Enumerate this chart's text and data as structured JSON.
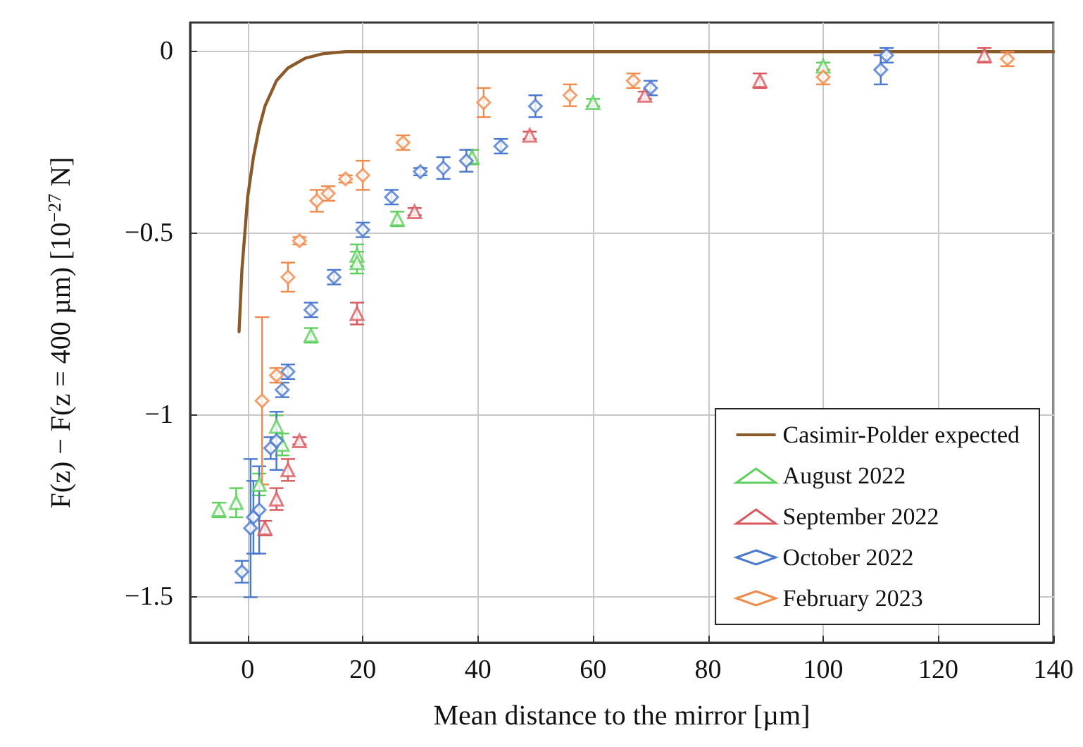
{
  "chart_data": {
    "type": "scatter",
    "xlabel": "Mean distance to the mirror [µm]",
    "ylabel": "F(z) − F(z = 400 µm) [10$^{−27}$ N]",
    "xlim": [
      -10,
      140
    ],
    "ylim": [
      -1.625,
      0.08
    ],
    "xticks": [
      0,
      20,
      40,
      60,
      80,
      100,
      120,
      140
    ],
    "yticks": [
      {
        "value": 0,
        "label": "0"
      },
      {
        "value": -0.5,
        "label": "−0.5"
      },
      {
        "value": -1,
        "label": "−1"
      },
      {
        "value": -1.5,
        "label": "−1.5"
      }
    ],
    "grid": true,
    "legend": "bottom right",
    "series": [
      {
        "name": "Casimir-Polder expected",
        "type": "line",
        "color": "#8b5a2b",
        "marker": "none",
        "line_style": "solid",
        "x": [
          -1.5,
          -1,
          -0.5,
          0,
          1,
          2,
          3,
          5,
          7,
          10,
          13,
          17,
          140
        ],
        "values": [
          -0.77,
          -0.6,
          -0.5,
          -0.4,
          -0.29,
          -0.21,
          -0.15,
          -0.08,
          -0.045,
          -0.018,
          -0.006,
          0,
          0
        ]
      },
      {
        "name": "August 2022",
        "color": "#5ccf5c",
        "marker": "triangle",
        "x": [
          -5,
          -2,
          0,
          2,
          5,
          5.5,
          6,
          11,
          19,
          19,
          26,
          39,
          60,
          100
        ],
        "values": [
          -1.26,
          -1.24,
          null,
          -1.19,
          -1.03,
          null,
          -1.08,
          -0.78,
          -0.56,
          -0.58,
          -0.46,
          -0.29,
          -0.14,
          -0.04
        ],
        "errors": [
          0.02,
          0.04,
          null,
          0.03,
          0.03,
          null,
          0.03,
          0.02,
          0.03,
          0.03,
          0.02,
          0.02,
          0.01,
          0.01
        ]
      },
      {
        "name": "September 2022",
        "color": "#d9585d",
        "marker": "triangle",
        "x": [
          3,
          5,
          7,
          9,
          19,
          29,
          49,
          69,
          89,
          128
        ],
        "values": [
          -1.31,
          -1.23,
          -1.15,
          -1.07,
          -0.72,
          -0.44,
          -0.23,
          -0.12,
          -0.08,
          -0.01
        ],
        "errors": [
          0.02,
          0.03,
          0.03,
          0.01,
          0.03,
          0.01,
          0.01,
          0.01,
          0.02,
          0.02
        ]
      },
      {
        "name": "October 2022",
        "color": "#4a78d0",
        "marker": "diamond",
        "x": [
          -1,
          0.5,
          1,
          2,
          4,
          5,
          6,
          7,
          11,
          15,
          20,
          25,
          30,
          34,
          38,
          44,
          50,
          70,
          110,
          111
        ],
        "values": [
          -1.43,
          -1.31,
          -1.28,
          -1.26,
          -1.09,
          -1.07,
          -0.93,
          -0.88,
          -0.71,
          -0.62,
          -0.49,
          -0.4,
          -0.33,
          -0.32,
          -0.3,
          -0.26,
          -0.15,
          -0.1,
          -0.05,
          -0.01
        ],
        "errors": [
          0.03,
          0.19,
          0.1,
          0.12,
          0.03,
          0.08,
          0.02,
          0.02,
          0.02,
          0.02,
          0.02,
          0.02,
          0.01,
          0.03,
          0.03,
          0.02,
          0.03,
          0.02,
          0.04,
          0.02
        ]
      },
      {
        "name": "February 2023",
        "color": "#f08a4b",
        "marker": "diamond",
        "x": [
          2.5,
          5,
          7,
          9,
          12,
          14,
          17,
          20,
          27,
          41,
          56,
          67,
          100,
          132
        ],
        "values": [
          -0.96,
          -0.89,
          -0.62,
          -0.52,
          -0.41,
          -0.39,
          -0.35,
          -0.34,
          -0.25,
          -0.14,
          -0.12,
          -0.08,
          -0.07,
          -0.02
        ],
        "errors": [
          0.23,
          0.02,
          0.04,
          0.01,
          0.03,
          0.02,
          0.01,
          0.04,
          0.02,
          0.04,
          0.03,
          0.02,
          0.02,
          0.02
        ]
      }
    ]
  }
}
